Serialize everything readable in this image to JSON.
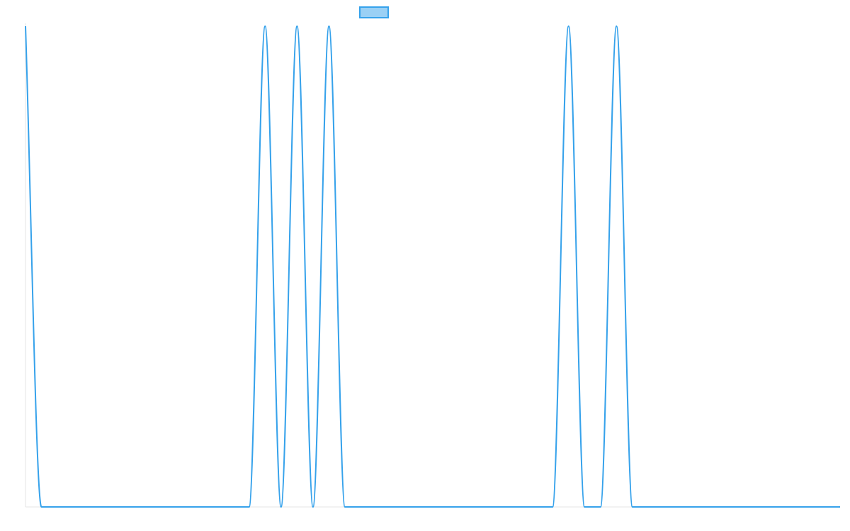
{
  "chart_data": {
    "type": "line",
    "title": "",
    "xlabel": "",
    "ylabel": "",
    "x": [
      0,
      1,
      14,
      15,
      16,
      17,
      18,
      19,
      20,
      33,
      34,
      35,
      36,
      37,
      38,
      51
    ],
    "series": [
      {
        "color": "#36a2eb",
        "fill": "#9ad0f5",
        "values": [
          1,
          0,
          0,
          1,
          0,
          1,
          0,
          1,
          0,
          0,
          1,
          0,
          0,
          1,
          0,
          0
        ]
      }
    ],
    "xlim": [
      0,
      51
    ],
    "ylim": [
      0,
      1
    ],
    "grid": false,
    "legend": "top-center",
    "axis_color": "#e5e5e5"
  }
}
